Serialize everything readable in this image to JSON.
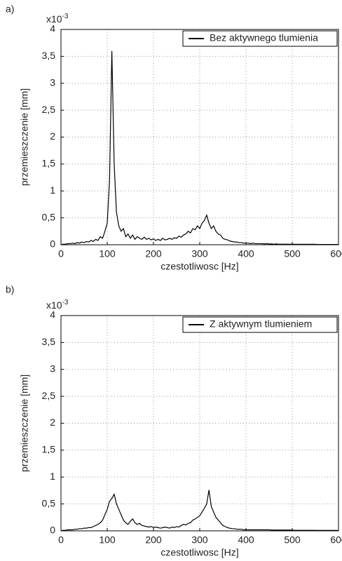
{
  "chart_data": [
    {
      "type": "line",
      "panel_label": "a)",
      "scale_base": "x10",
      "scale_exponent": "-3",
      "xlabel": "czestotliwosc [Hz]",
      "ylabel": "przemieszczenie [mm]",
      "xlim": [
        0,
        600
      ],
      "xticks": [
        0,
        100,
        200,
        300,
        400,
        500,
        600
      ],
      "ylim": [
        0,
        4
      ],
      "yticks": [
        0,
        {
          "value": 0.5,
          "label": "0,5"
        },
        1,
        {
          "value": 1.5,
          "label": "1,5"
        },
        2,
        {
          "value": 2.5,
          "label": "2,5"
        },
        3,
        {
          "value": 3.5,
          "label": "3,5"
        },
        4
      ],
      "grid": true,
      "legend": "upper right",
      "x": [
        0,
        5,
        10,
        15,
        20,
        25,
        30,
        35,
        40,
        45,
        50,
        55,
        60,
        65,
        70,
        75,
        80,
        85,
        90,
        95,
        100,
        105,
        110,
        115,
        120,
        125,
        130,
        135,
        140,
        145,
        150,
        155,
        160,
        165,
        170,
        175,
        180,
        185,
        190,
        195,
        200,
        205,
        210,
        215,
        220,
        225,
        230,
        235,
        240,
        245,
        250,
        255,
        260,
        265,
        270,
        275,
        280,
        285,
        290,
        295,
        300,
        305,
        310,
        315,
        320,
        325,
        330,
        335,
        340,
        345,
        350,
        355,
        360,
        365,
        370,
        375,
        380,
        385,
        390,
        395,
        400,
        405,
        410,
        415,
        420,
        425,
        430,
        435,
        440,
        445,
        450,
        455,
        460,
        465,
        470,
        475,
        480,
        485,
        490,
        495,
        500,
        505,
        510,
        515,
        520,
        525,
        530,
        535,
        540,
        545,
        550,
        555,
        560,
        565,
        570,
        575,
        580,
        585,
        590,
        595,
        600
      ],
      "series": [
        {
          "name": "Bez aktywnego tlumienia",
          "color": "#000000",
          "values": [
            0,
            0.01,
            0.01,
            0.02,
            0.02,
            0.03,
            0.02,
            0.04,
            0.03,
            0.05,
            0.04,
            0.06,
            0.05,
            0.08,
            0.06,
            0.1,
            0.08,
            0.15,
            0.12,
            0.25,
            0.4,
            1.2,
            3.6,
            1.5,
            0.6,
            0.35,
            0.25,
            0.3,
            0.15,
            0.2,
            0.12,
            0.18,
            0.1,
            0.15,
            0.12,
            0.1,
            0.14,
            0.1,
            0.12,
            0.09,
            0.11,
            0.08,
            0.1,
            0.08,
            0.12,
            0.09,
            0.1,
            0.12,
            0.1,
            0.13,
            0.12,
            0.16,
            0.14,
            0.18,
            0.2,
            0.25,
            0.22,
            0.3,
            0.28,
            0.35,
            0.3,
            0.4,
            0.45,
            0.55,
            0.4,
            0.3,
            0.35,
            0.25,
            0.2,
            0.18,
            0.12,
            0.1,
            0.09,
            0.07,
            0.06,
            0.05,
            0.05,
            0.04,
            0.04,
            0.03,
            0.03,
            0.03,
            0.02,
            0.03,
            0.02,
            0.02,
            0.02,
            0.02,
            0.015,
            0.02,
            0.015,
            0.015,
            0.01,
            0.015,
            0.01,
            0.01,
            0.01,
            0.01,
            0.01,
            0.008,
            0.01,
            0.008,
            0.008,
            0.008,
            0.008,
            0.008,
            0.008,
            0.008,
            0.008,
            0.008,
            0.008,
            0.006,
            0.006,
            0.006,
            0.006,
            0.006,
            0.006,
            0.006,
            0.006,
            0.006,
            0.006
          ]
        }
      ]
    },
    {
      "type": "line",
      "panel_label": "b)",
      "scale_base": "x10",
      "scale_exponent": "-3",
      "xlabel": "czestotliwosc [Hz]",
      "ylabel": "przemieszczenie [mm]",
      "xlim": [
        0,
        600
      ],
      "xticks": [
        0,
        100,
        200,
        300,
        400,
        500,
        600
      ],
      "ylim": [
        0,
        4
      ],
      "yticks": [
        0,
        {
          "value": 0.5,
          "label": "0,5"
        },
        1,
        {
          "value": 1.5,
          "label": "1,5"
        },
        2,
        {
          "value": 2.5,
          "label": "2,5"
        },
        3,
        {
          "value": 3.5,
          "label": "3,5"
        },
        4
      ],
      "grid": true,
      "legend": "upper right",
      "x": [
        0,
        5,
        10,
        15,
        20,
        25,
        30,
        35,
        40,
        45,
        50,
        55,
        60,
        65,
        70,
        75,
        80,
        85,
        90,
        95,
        100,
        105,
        110,
        115,
        120,
        125,
        130,
        135,
        140,
        145,
        150,
        155,
        160,
        165,
        170,
        175,
        180,
        185,
        190,
        195,
        200,
        205,
        210,
        215,
        220,
        225,
        230,
        235,
        240,
        245,
        250,
        255,
        260,
        265,
        270,
        275,
        280,
        285,
        290,
        295,
        300,
        305,
        310,
        315,
        320,
        325,
        330,
        335,
        340,
        345,
        350,
        355,
        360,
        365,
        370,
        375,
        380,
        385,
        390,
        395,
        400,
        405,
        410,
        415,
        420,
        425,
        430,
        435,
        440,
        445,
        450,
        455,
        460,
        465,
        470,
        475,
        480,
        485,
        490,
        495,
        500,
        505,
        510,
        515,
        520,
        525,
        530,
        535,
        540,
        545,
        550,
        555,
        560,
        565,
        570,
        575,
        580,
        585,
        590,
        595,
        600
      ],
      "series": [
        {
          "name": "Z aktywnym tlumieniem",
          "color": "#000000",
          "values": [
            0,
            0.01,
            0.01,
            0.02,
            0.02,
            0.02,
            0.03,
            0.03,
            0.04,
            0.04,
            0.05,
            0.05,
            0.06,
            0.06,
            0.08,
            0.1,
            0.12,
            0.15,
            0.2,
            0.3,
            0.4,
            0.55,
            0.6,
            0.68,
            0.5,
            0.4,
            0.3,
            0.2,
            0.15,
            0.12,
            0.18,
            0.22,
            0.15,
            0.12,
            0.14,
            0.1,
            0.09,
            0.08,
            0.07,
            0.08,
            0.06,
            0.07,
            0.06,
            0.05,
            0.06,
            0.07,
            0.06,
            0.05,
            0.07,
            0.06,
            0.08,
            0.07,
            0.1,
            0.12,
            0.11,
            0.14,
            0.15,
            0.2,
            0.22,
            0.25,
            0.28,
            0.35,
            0.42,
            0.5,
            0.76,
            0.45,
            0.35,
            0.25,
            0.2,
            0.15,
            0.1,
            0.08,
            0.06,
            0.05,
            0.04,
            0.04,
            0.03,
            0.03,
            0.03,
            0.02,
            0.02,
            0.02,
            0.02,
            0.02,
            0.02,
            0.02,
            0.02,
            0.02,
            0.02,
            0.02,
            0.02,
            0.015,
            0.015,
            0.015,
            0.015,
            0.015,
            0.015,
            0.015,
            0.015,
            0.015,
            0.015,
            0.01,
            0.01,
            0.01,
            0.01,
            0.01,
            0.01,
            0.01,
            0.01,
            0.01,
            0.01,
            0.008,
            0.008,
            0.008,
            0.008,
            0.008,
            0.008,
            0.008,
            0.008,
            0.008,
            0.008
          ]
        }
      ]
    }
  ]
}
